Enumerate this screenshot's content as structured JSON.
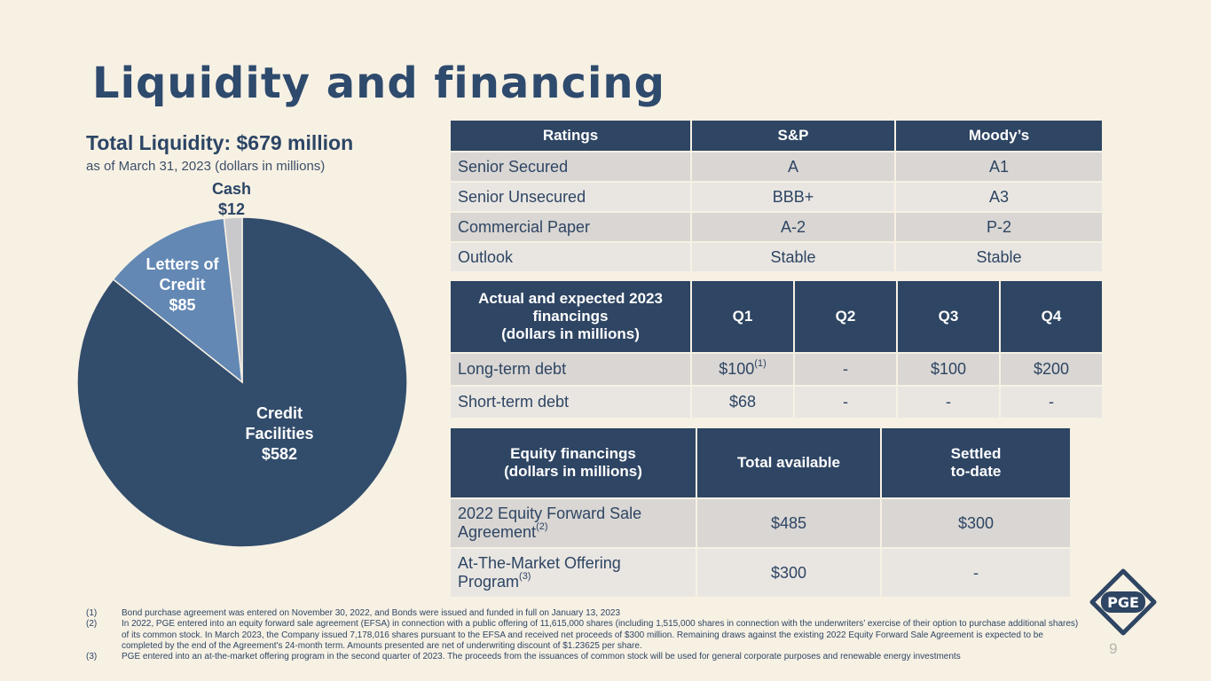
{
  "title": "Liquidity and financing",
  "liquidity": {
    "heading": "Total Liquidity: $679 million",
    "subheading": "as of March 31, 2023 (dollars in millions)"
  },
  "chart_data": {
    "type": "pie",
    "title": "Total Liquidity: $679 million",
    "subtitle": "as of March 31, 2023 (dollars in millions)",
    "slices": [
      {
        "name": "Credit Facilities",
        "value": 582,
        "label": "$582",
        "color": "#324c6b"
      },
      {
        "name": "Letters of Credit",
        "value": 85,
        "label": "$85",
        "color": "#6388b4"
      },
      {
        "name": "Cash",
        "value": 12,
        "label": "$12",
        "color": "#c9c9cc"
      }
    ]
  },
  "ratings": {
    "headers": [
      "Ratings",
      "S&P",
      "Moody’s"
    ],
    "rows": [
      [
        "Senior Secured",
        "A",
        "A1"
      ],
      [
        "Senior Unsecured",
        "BBB+",
        "A3"
      ],
      [
        "Commercial Paper",
        "A-2",
        "P-2"
      ],
      [
        "Outlook",
        "Stable",
        "Stable"
      ]
    ]
  },
  "financings": {
    "header_line1": "Actual and expected 2023",
    "header_line2": "financings",
    "header_line3": "(dollars in millions)",
    "quarters": [
      "Q1",
      "Q2",
      "Q3",
      "Q4"
    ],
    "rows": [
      {
        "label": "Long-term debt",
        "q1": "$100",
        "q1_note": "(1)",
        "q2": "-",
        "q3": "$100",
        "q4": "$200"
      },
      {
        "label": "Short-term debt",
        "q1": "$68",
        "q1_note": "",
        "q2": "-",
        "q3": "-",
        "q4": "-"
      }
    ]
  },
  "equity": {
    "header_line1": "Equity financings",
    "header_line2": "(dollars in millions)",
    "total_header": "Total available",
    "settled_line1": "Settled",
    "settled_line2": "to-date",
    "rows": [
      {
        "line1": "2022 Equity Forward Sale",
        "line2": "Agreement",
        "note": "(2)",
        "total": "$485",
        "settled": "$300"
      },
      {
        "line1": "At-The-Market Offering",
        "line2": "Program",
        "note": "(3)",
        "total": "$300",
        "settled": "-"
      }
    ]
  },
  "footnotes": [
    {
      "num": "(1)",
      "text": "Bond purchase agreement was entered on November 30, 2022, and Bonds were issued and funded in full on January 13, 2023"
    },
    {
      "num": "(2)",
      "text": "In 2022, PGE entered into an equity forward sale agreement (EFSA) in connection with a public offering of 11,615,000 shares (including 1,515,000 shares in connection with the underwriters’ exercise of their option to purchase additional shares) of its common stock. In March 2023, the Company issued 7,178,016 shares pursuant to the EFSA and received net proceeds of $300 million. Remaining draws against the existing 2022 Equity Forward Sale Agreement is expected to be completed by the end of the Agreement's 24-month term. Amounts presented are net of underwriting discount of $1.23625 per share."
    },
    {
      "num": "(3)",
      "text": "PGE entered into an at-the-market offering program in the second quarter of 2023. The proceeds from the issuances of common stock will be used for general corporate purposes and renewable energy investments"
    }
  ],
  "page_number": "9",
  "logo_text": "PGE"
}
